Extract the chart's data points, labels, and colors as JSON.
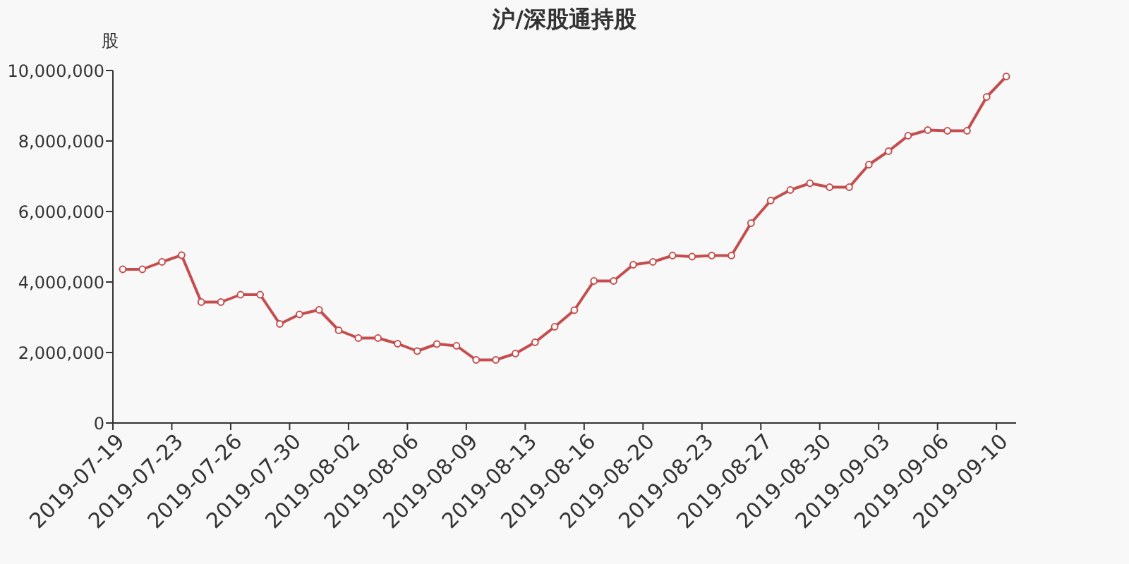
{
  "chart_data": {
    "type": "line",
    "title": "沪/深股通持股",
    "ylabel": "股",
    "categories": [
      "2019-07-19",
      null,
      null,
      "2019-07-23",
      null,
      null,
      "2019-07-26",
      null,
      null,
      "2019-07-30",
      null,
      null,
      "2019-08-02",
      null,
      null,
      "2019-08-06",
      null,
      null,
      "2019-08-09",
      null,
      null,
      "2019-08-13",
      null,
      null,
      "2019-08-16",
      null,
      null,
      "2019-08-20",
      null,
      null,
      "2019-08-23",
      null,
      null,
      "2019-08-27",
      null,
      null,
      "2019-08-30",
      null,
      null,
      "2019-09-03",
      null,
      null,
      "2019-09-06",
      null,
      null,
      "2019-09-10"
    ],
    "series": [
      {
        "color": "#c44e4e",
        "values": [
          4360000,
          4360000,
          4570000,
          4760000,
          3430000,
          3430000,
          3640000,
          3640000,
          2810000,
          3080000,
          3210000,
          2630000,
          2410000,
          2410000,
          2250000,
          2040000,
          2240000,
          2190000,
          1790000,
          1790000,
          1970000,
          2290000,
          2730000,
          3200000,
          4030000,
          4030000,
          4490000,
          4570000,
          4750000,
          4720000,
          4750000,
          4750000,
          5670000,
          6310000,
          6610000,
          6800000,
          6690000,
          6690000,
          7330000,
          7710000,
          8150000,
          8310000,
          8290000,
          8290000,
          9250000,
          9830000
        ]
      }
    ],
    "ylim": [
      0,
      10000000
    ],
    "yticks": [
      0,
      {
        "value": 2000000,
        "label": "2,000,000"
      },
      {
        "value": 4000000,
        "label": "4,000,000"
      },
      {
        "value": 6000000,
        "label": "6,000,000"
      },
      {
        "value": 8000000,
        "label": "8,000,000"
      },
      {
        "value": 10000000,
        "label": "10,000,000"
      }
    ],
    "marker": "circle",
    "line_style": "solid",
    "grid": false
  }
}
